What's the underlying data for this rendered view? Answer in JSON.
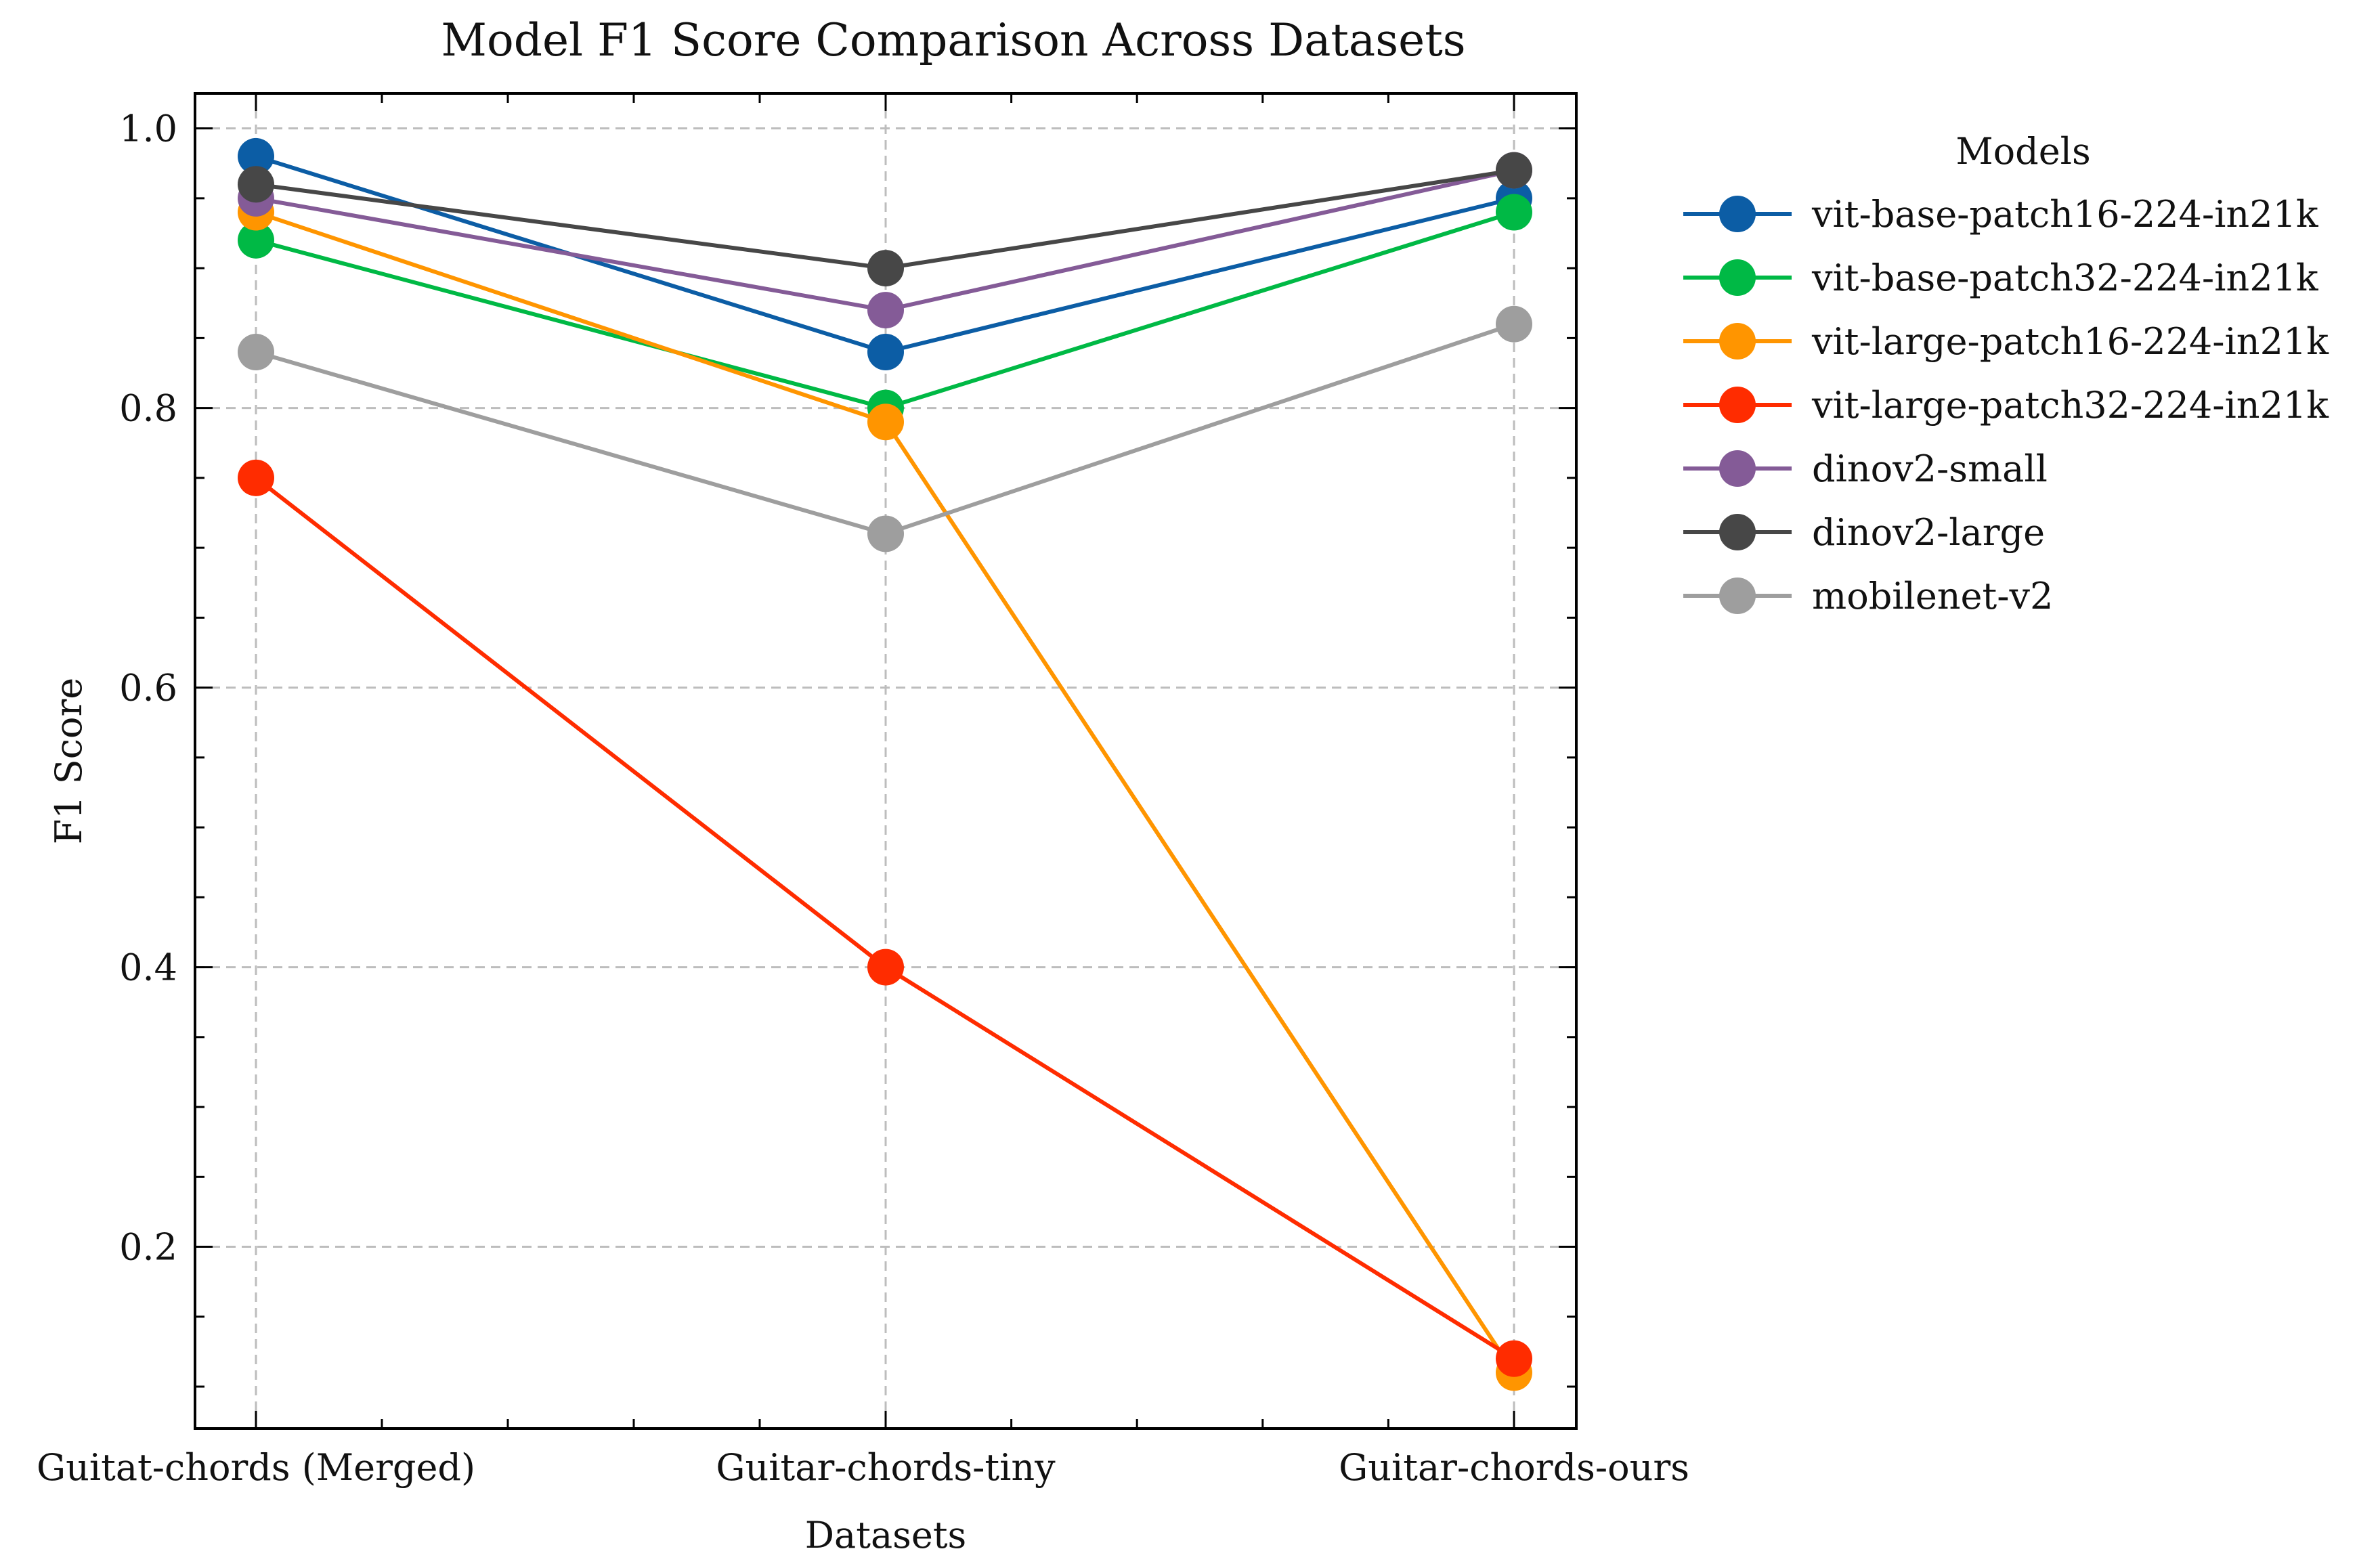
{
  "chart_data": {
    "type": "line",
    "title": "Model F1 Score Comparison Across Datasets",
    "xlabel": "Datasets",
    "ylabel": "F1 Score",
    "categories": [
      "Guitat-chords (Merged)",
      "Guitar-chords-tiny",
      "Guitar-chords-ours"
    ],
    "ylim": [
      0.07,
      1.025
    ],
    "yticks": [
      0.2,
      0.4,
      0.6,
      0.8,
      1.0
    ],
    "ytick_labels": [
      "0.2",
      "0.4",
      "0.6",
      "0.8",
      "1.0"
    ],
    "grid": true,
    "legend": {
      "title": "Models",
      "placement": "outside-right"
    },
    "series": [
      {
        "name": "vit-base-patch16-224-in21k",
        "color": "#0C5DA5",
        "values": [
          0.98,
          0.84,
          0.95
        ]
      },
      {
        "name": "vit-base-patch32-224-in21k",
        "color": "#00B945",
        "values": [
          0.92,
          0.8,
          0.94
        ]
      },
      {
        "name": "vit-large-patch16-224-in21k",
        "color": "#FF9500",
        "values": [
          0.94,
          0.79,
          0.11
        ]
      },
      {
        "name": "vit-large-patch32-224-in21k",
        "color": "#FF2C00",
        "values": [
          0.75,
          0.4,
          0.12
        ]
      },
      {
        "name": "dinov2-small",
        "color": "#845B97",
        "values": [
          0.95,
          0.87,
          0.97
        ]
      },
      {
        "name": "dinov2-large",
        "color": "#474747",
        "values": [
          0.96,
          0.9,
          0.97
        ]
      },
      {
        "name": "mobilenet-v2",
        "color": "#9E9E9E",
        "values": [
          0.84,
          0.71,
          0.86
        ]
      }
    ]
  }
}
